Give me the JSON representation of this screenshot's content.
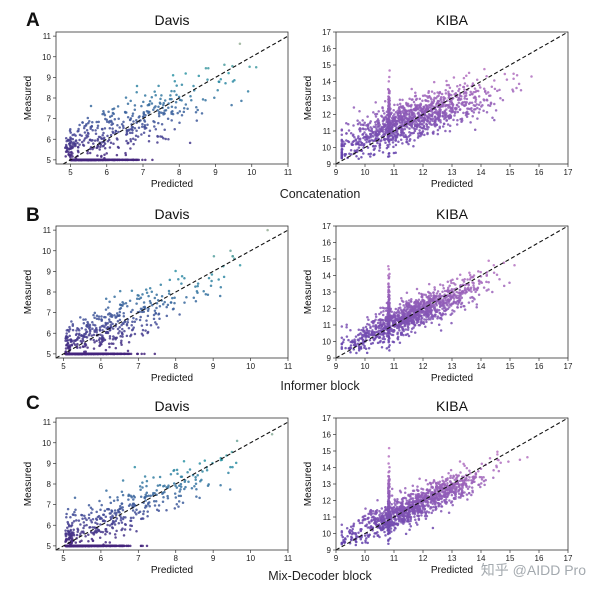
{
  "rows": [
    {
      "letter": "A",
      "caption": "Concatenation"
    },
    {
      "letter": "B",
      "caption": "Informer block"
    },
    {
      "letter": "C",
      "caption": "Mix-Decoder block"
    }
  ],
  "watermark": "知乎 @AIDD Pro",
  "chart_data": [
    {
      "type": "scatter",
      "title": "Davis",
      "xlabel": "Predicted",
      "ylabel": "Measured",
      "xlim": [
        4.6,
        11
      ],
      "ylim": [
        4.8,
        11.2
      ],
      "xticks": [
        "5",
        "6",
        "7",
        "8",
        "9",
        "10",
        "11"
      ],
      "yticks": [
        "5",
        "6",
        "7",
        "8",
        "9",
        "10",
        "11"
      ],
      "reference_line": "y = x (dashed)",
      "n_points": 900,
      "spread": 0.8,
      "colormap": "viridis-like"
    },
    {
      "type": "scatter",
      "title": "KIBA",
      "xlabel": "Predicted",
      "ylabel": "Measured",
      "xlim": [
        9,
        17
      ],
      "ylim": [
        9,
        17
      ],
      "xticks": [
        "9",
        "10",
        "11",
        "12",
        "13",
        "14",
        "15",
        "16",
        "17"
      ],
      "yticks": [
        "9",
        "10",
        "11",
        "12",
        "13",
        "14",
        "15",
        "16",
        "17"
      ],
      "reference_line": "y = x (dashed)",
      "n_points": 1300,
      "spread": 0.8,
      "colormap": "purple"
    },
    {
      "type": "scatter",
      "title": "Davis",
      "xlabel": "Predicted",
      "ylabel": "Measured",
      "xlim": [
        4.8,
        11
      ],
      "ylim": [
        4.8,
        11.2
      ],
      "xticks": [
        "5",
        "6",
        "7",
        "8",
        "9",
        "10",
        "11"
      ],
      "yticks": [
        "5",
        "6",
        "7",
        "8",
        "9",
        "10",
        "11"
      ],
      "reference_line": "y = x (dashed)",
      "n_points": 900,
      "spread": 0.65,
      "colormap": "viridis-like"
    },
    {
      "type": "scatter",
      "title": "KIBA",
      "xlabel": "Predicted",
      "ylabel": "Measured",
      "xlim": [
        9,
        17
      ],
      "ylim": [
        9,
        17
      ],
      "xticks": [
        "9",
        "10",
        "11",
        "12",
        "13",
        "14",
        "15",
        "16",
        "17"
      ],
      "yticks": [
        "9",
        "10",
        "11",
        "12",
        "13",
        "14",
        "15",
        "16",
        "17"
      ],
      "reference_line": "y = x (dashed)",
      "n_points": 1300,
      "spread": 0.55,
      "colormap": "purple"
    },
    {
      "type": "scatter",
      "title": "Davis",
      "xlabel": "Predicted",
      "ylabel": "Measured",
      "xlim": [
        4.8,
        11
      ],
      "ylim": [
        4.8,
        11.2
      ],
      "xticks": [
        "5",
        "6",
        "7",
        "8",
        "9",
        "10",
        "11"
      ],
      "yticks": [
        "5",
        "6",
        "7",
        "8",
        "9",
        "10",
        "11"
      ],
      "reference_line": "y = x (dashed)",
      "n_points": 900,
      "spread": 0.6,
      "colormap": "viridis-like"
    },
    {
      "type": "scatter",
      "title": "KIBA",
      "xlabel": "Predicted",
      "ylabel": "Measured",
      "xlim": [
        9,
        17
      ],
      "ylim": [
        9,
        17
      ],
      "xticks": [
        "9",
        "10",
        "11",
        "12",
        "13",
        "14",
        "15",
        "16",
        "17"
      ],
      "yticks": [
        "9",
        "10",
        "11",
        "12",
        "13",
        "14",
        "15",
        "16",
        "17"
      ],
      "reference_line": "y = x (dashed)",
      "n_points": 1300,
      "spread": 0.5,
      "colormap": "purple"
    }
  ]
}
